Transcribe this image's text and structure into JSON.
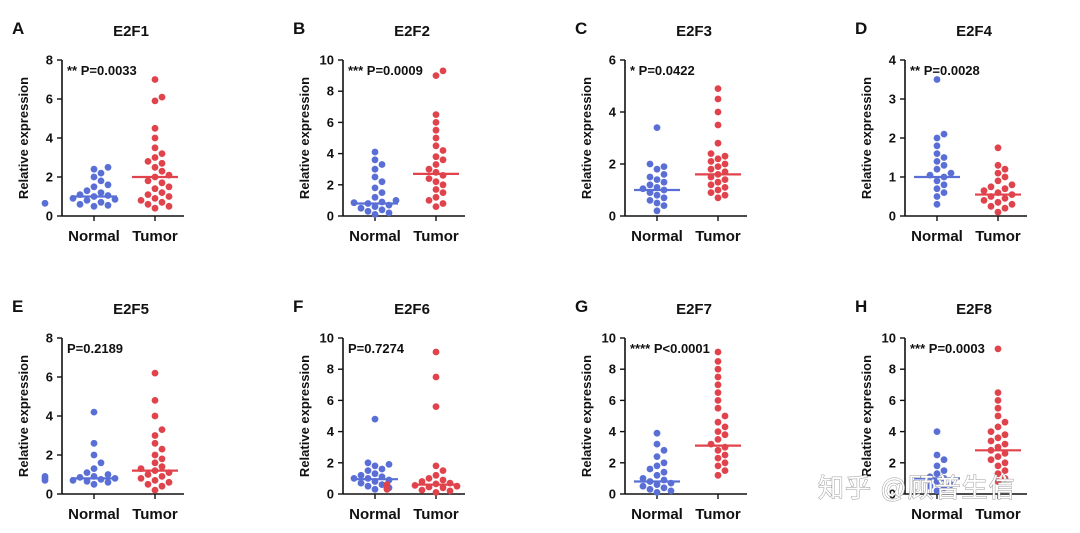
{
  "chart_data": [
    {
      "type": "scatter",
      "panel": "A",
      "title": "E2F1",
      "ylabel": "Relative expression",
      "ylim": [
        0,
        8
      ],
      "yticks": [
        0,
        2,
        4,
        6,
        8
      ],
      "categories": [
        "Normal",
        "Tumor"
      ],
      "annotation": "** P=0.0033",
      "series": [
        {
          "name": "Normal",
          "color": "#5a6fd6",
          "median": 1.0,
          "values": [
            0.5,
            0.55,
            0.6,
            0.65,
            0.7,
            0.8,
            0.85,
            0.9,
            1.0,
            1.05,
            1.1,
            1.2,
            1.3,
            1.5,
            1.6,
            1.8,
            2.0,
            2.2,
            2.4,
            2.5
          ]
        },
        {
          "name": "Tumor",
          "color": "#e0434b",
          "median": 2.0,
          "values": [
            0.4,
            0.5,
            0.6,
            0.7,
            0.8,
            0.9,
            1.0,
            1.1,
            1.2,
            1.4,
            1.5,
            1.7,
            1.8,
            2.0,
            2.1,
            2.3,
            2.5,
            2.7,
            2.8,
            3.0,
            3.2,
            3.5,
            4.0,
            4.5,
            5.9,
            6.1,
            7.0
          ]
        }
      ]
    },
    {
      "type": "scatter",
      "panel": "B",
      "title": "E2F2",
      "ylabel": "Relative expression",
      "ylim": [
        0,
        10
      ],
      "yticks": [
        0,
        2,
        4,
        6,
        8,
        10
      ],
      "categories": [
        "Normal",
        "Tumor"
      ],
      "annotation": "*** P=0.0009",
      "series": [
        {
          "name": "Normal",
          "color": "#5a6fd6",
          "median": 0.8,
          "values": [
            0.1,
            0.2,
            0.3,
            0.4,
            0.5,
            0.6,
            0.7,
            0.8,
            0.85,
            0.9,
            1.0,
            1.2,
            1.5,
            1.8,
            2.2,
            2.5,
            3.0,
            3.3,
            3.6,
            4.1
          ]
        },
        {
          "name": "Tumor",
          "color": "#e0434b",
          "median": 2.7,
          "values": [
            0.6,
            0.8,
            1.0,
            1.2,
            1.5,
            1.7,
            2.0,
            2.2,
            2.4,
            2.6,
            2.8,
            3.0,
            3.3,
            3.6,
            3.8,
            4.2,
            4.5,
            5.0,
            5.5,
            6.0,
            6.5,
            9.0,
            9.3
          ]
        }
      ]
    },
    {
      "type": "scatter",
      "panel": "C",
      "title": "E2F3",
      "ylabel": "Relative expression",
      "ylim": [
        0,
        6
      ],
      "yticks": [
        0,
        2,
        4,
        6
      ],
      "categories": [
        "Normal",
        "Tumor"
      ],
      "annotation": "* P=0.0422",
      "series": [
        {
          "name": "Normal",
          "color": "#5a6fd6",
          "median": 1.0,
          "values": [
            0.2,
            0.4,
            0.5,
            0.6,
            0.7,
            0.8,
            0.9,
            1.0,
            1.05,
            1.1,
            1.2,
            1.3,
            1.4,
            1.5,
            1.6,
            1.8,
            1.9,
            2.0,
            3.4
          ]
        },
        {
          "name": "Tumor",
          "color": "#e0434b",
          "median": 1.6,
          "values": [
            0.7,
            0.8,
            0.9,
            1.0,
            1.1,
            1.2,
            1.3,
            1.4,
            1.5,
            1.6,
            1.7,
            1.8,
            1.9,
            2.0,
            2.1,
            2.2,
            2.3,
            2.4,
            2.8,
            3.5,
            4.0,
            4.5,
            4.9
          ]
        }
      ]
    },
    {
      "type": "scatter",
      "panel": "D",
      "title": "E2F4",
      "ylabel": "Relative expression",
      "ylim": [
        0,
        4
      ],
      "yticks": [
        0,
        1,
        2,
        3,
        4
      ],
      "categories": [
        "Normal",
        "Tumor"
      ],
      "annotation": "** P=0.0028",
      "series": [
        {
          "name": "Normal",
          "color": "#5a6fd6",
          "median": 1.0,
          "values": [
            0.3,
            0.5,
            0.6,
            0.7,
            0.8,
            0.9,
            1.0,
            1.05,
            1.1,
            1.2,
            1.3,
            1.4,
            1.5,
            1.6,
            1.8,
            2.0,
            2.1,
            3.5
          ]
        },
        {
          "name": "Tumor",
          "color": "#e0434b",
          "median": 0.55,
          "values": [
            0.1,
            0.2,
            0.25,
            0.3,
            0.35,
            0.4,
            0.45,
            0.5,
            0.55,
            0.6,
            0.65,
            0.7,
            0.75,
            0.8,
            0.9,
            1.0,
            1.1,
            1.2,
            1.3,
            1.75
          ]
        }
      ]
    },
    {
      "type": "scatter",
      "panel": "E",
      "title": "E2F5",
      "ylabel": "Relative expression",
      "ylim": [
        0,
        8
      ],
      "yticks": [
        0,
        2,
        4,
        6,
        8
      ],
      "categories": [
        "Normal",
        "Tumor"
      ],
      "annotation": "P=0.2189",
      "series": [
        {
          "name": "Normal",
          "color": "#5a6fd6",
          "median": 0.8,
          "values": [
            0.5,
            0.6,
            0.65,
            0.7,
            0.7,
            0.75,
            0.8,
            0.8,
            0.85,
            0.9,
            0.9,
            1.0,
            1.1,
            1.3,
            1.6,
            2.0,
            2.6,
            4.2
          ]
        },
        {
          "name": "Tumor",
          "color": "#e0434b",
          "median": 1.2,
          "values": [
            0.2,
            0.4,
            0.5,
            0.6,
            0.7,
            0.8,
            0.9,
            1.0,
            1.1,
            1.2,
            1.3,
            1.4,
            1.6,
            1.8,
            2.0,
            2.3,
            2.6,
            3.0,
            3.3,
            4.0,
            4.8,
            6.2
          ]
        }
      ]
    },
    {
      "type": "scatter",
      "panel": "F",
      "title": "E2F6",
      "ylabel": "Relative expression",
      "ylim": [
        0,
        10
      ],
      "yticks": [
        0,
        2,
        4,
        6,
        8,
        10
      ],
      "categories": [
        "Normal",
        "Tumor"
      ],
      "annotation": "P=0.7274",
      "series": [
        {
          "name": "Normal",
          "color": "#5a6fd6",
          "median": 0.95,
          "values": [
            0.3,
            0.4,
            0.5,
            0.6,
            0.7,
            0.8,
            0.9,
            1.0,
            1.0,
            1.1,
            1.2,
            1.3,
            1.5,
            1.6,
            1.8,
            1.9,
            2.0,
            4.8
          ]
        },
        {
          "name": "Tumor",
          "color": "#e0434b",
          "median": 0.6,
          "values": [
            0.1,
            0.2,
            0.25,
            0.3,
            0.35,
            0.4,
            0.45,
            0.5,
            0.55,
            0.6,
            0.65,
            0.7,
            0.8,
            0.9,
            1.0,
            1.2,
            1.5,
            1.8,
            5.6,
            7.5,
            9.1
          ]
        }
      ]
    },
    {
      "type": "scatter",
      "panel": "G",
      "title": "E2F7",
      "ylabel": "Relative expression",
      "ylim": [
        0,
        10
      ],
      "yticks": [
        0,
        2,
        4,
        6,
        8,
        10
      ],
      "categories": [
        "Normal",
        "Tumor"
      ],
      "annotation": "**** P<0.0001",
      "series": [
        {
          "name": "Normal",
          "color": "#5a6fd6",
          "median": 0.8,
          "values": [
            0.1,
            0.2,
            0.3,
            0.4,
            0.5,
            0.6,
            0.7,
            0.8,
            0.9,
            1.0,
            1.2,
            1.4,
            1.6,
            1.8,
            2.0,
            2.4,
            2.8,
            3.2,
            3.9
          ]
        },
        {
          "name": "Tumor",
          "color": "#e0434b",
          "median": 3.1,
          "values": [
            1.2,
            1.5,
            1.8,
            2.0,
            2.3,
            2.5,
            2.8,
            3.0,
            3.2,
            3.5,
            3.8,
            4.0,
            4.3,
            4.6,
            5.0,
            5.5,
            6.0,
            6.5,
            7.0,
            7.5,
            8.0,
            8.5,
            9.1
          ]
        }
      ]
    },
    {
      "type": "scatter",
      "panel": "H",
      "title": "E2F8",
      "ylabel": "Relative expression",
      "ylim": [
        0,
        10
      ],
      "yticks": [
        0,
        2,
        4,
        6,
        8,
        10
      ],
      "categories": [
        "Normal",
        "Tumor"
      ],
      "annotation": "*** P=0.0003",
      "series": [
        {
          "name": "Normal",
          "color": "#5a6fd6",
          "median": 1.0,
          "values": [
            0.2,
            0.4,
            0.5,
            0.6,
            0.8,
            1.0,
            1.1,
            1.3,
            1.5,
            1.8,
            2.2,
            2.5,
            4.0
          ]
        },
        {
          "name": "Tumor",
          "color": "#e0434b",
          "median": 2.8,
          "values": [
            0.8,
            1.0,
            1.3,
            1.5,
            1.8,
            2.0,
            2.2,
            2.4,
            2.6,
            2.8,
            3.0,
            3.2,
            3.4,
            3.6,
            3.8,
            4.0,
            4.3,
            4.6,
            5.0,
            5.5,
            6.0,
            6.5,
            9.3
          ]
        }
      ]
    }
  ],
  "watermark": "知乎 @顾普生信"
}
